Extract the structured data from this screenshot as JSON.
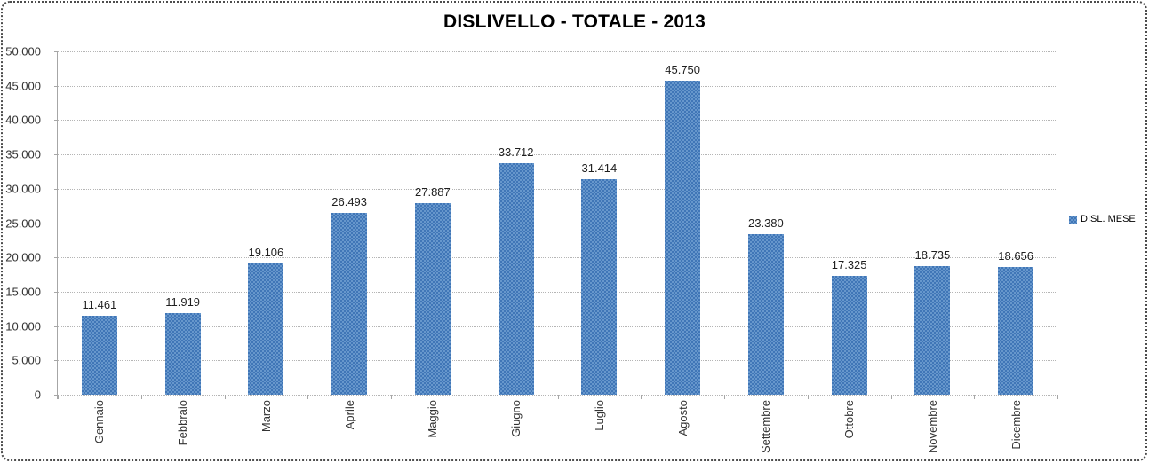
{
  "chart": {
    "title": "DISLIVELLO - TOTALE - 2013",
    "legend_label": "DISL. MESE"
  },
  "chart_data": {
    "type": "bar",
    "title": "DISLIVELLO - TOTALE - 2013",
    "categories": [
      "Gennaio",
      "Febbraio",
      "Marzo",
      "Aprile",
      "Maggio",
      "Giugno",
      "Luglio",
      "Agosto",
      "Settembre",
      "Ottobre",
      "Novembre",
      "Dicembre"
    ],
    "series": [
      {
        "name": "DISL. MESE",
        "values": [
          11461,
          11919,
          19106,
          26493,
          27887,
          33712,
          31414,
          45750,
          23380,
          17325,
          18735,
          18656
        ],
        "data_labels": [
          "11.461",
          "11.919",
          "19.106",
          "26.493",
          "27.887",
          "33.712",
          "31.414",
          "45.750",
          "23.380",
          "17.325",
          "18.735",
          "18.656"
        ],
        "color": "#4076b7"
      }
    ],
    "xlabel": "",
    "ylabel": "",
    "ylim": [
      0,
      50000
    ],
    "ytick_step": 5000,
    "ytick_labels": [
      "0",
      "5.000",
      "10.000",
      "15.000",
      "20.000",
      "25.000",
      "30.000",
      "35.000",
      "40.000",
      "45.000",
      "50.000"
    ],
    "grid": true,
    "gridline_style": "dotted",
    "legend_position": "right",
    "data_labels_shown": true,
    "x_label_rotation": "vertical"
  }
}
